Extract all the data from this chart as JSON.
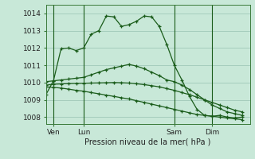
{
  "xlabel": "Pression niveau de la mer( hPa )",
  "ylim": [
    1007.6,
    1014.5
  ],
  "yticks": [
    1008,
    1009,
    1010,
    1011,
    1012,
    1013,
    1014
  ],
  "bg_color": "#c8e8d8",
  "grid_color": "#a0c8b8",
  "line_color": "#1a5c1a",
  "day_labels": [
    "Ven",
    "Lun",
    "Sam",
    "Dim"
  ],
  "day_positions": [
    1,
    5,
    17,
    22
  ],
  "vline_positions": [
    1,
    5,
    17,
    22
  ],
  "xlim": [
    0,
    27
  ],
  "series": [
    {
      "x": [
        0,
        1,
        2,
        3,
        4,
        5,
        6,
        7,
        8,
        9,
        10,
        11,
        12,
        13,
        14,
        15,
        16,
        17,
        18,
        19,
        20,
        21,
        22,
        23,
        24,
        25,
        26
      ],
      "y": [
        1009.3,
        1010.1,
        1011.95,
        1012.0,
        1011.85,
        1012.0,
        1012.8,
        1013.0,
        1013.85,
        1013.8,
        1013.25,
        1013.35,
        1013.55,
        1013.85,
        1013.8,
        1013.25,
        1012.2,
        1011.0,
        1010.15,
        1009.2,
        1008.45,
        1008.1,
        1008.05,
        1008.1,
        1008.0,
        1007.95,
        1008.0
      ]
    },
    {
      "x": [
        0,
        1,
        2,
        3,
        4,
        5,
        6,
        7,
        8,
        9,
        10,
        11,
        12,
        13,
        14,
        15,
        16,
        17,
        18,
        19,
        20,
        21,
        22,
        23,
        24,
        25,
        26
      ],
      "y": [
        1010.05,
        1010.1,
        1010.15,
        1010.2,
        1010.25,
        1010.3,
        1010.45,
        1010.6,
        1010.75,
        1010.85,
        1010.95,
        1011.05,
        1010.95,
        1010.8,
        1010.6,
        1010.4,
        1010.15,
        1010.05,
        1009.85,
        1009.6,
        1009.3,
        1009.0,
        1008.7,
        1008.5,
        1008.3,
        1008.2,
        1008.1
      ]
    },
    {
      "x": [
        0,
        1,
        2,
        3,
        4,
        5,
        6,
        7,
        8,
        9,
        10,
        11,
        12,
        13,
        14,
        15,
        16,
        17,
        18,
        19,
        20,
        21,
        22,
        23,
        24,
        25,
        26
      ],
      "y": [
        1009.85,
        1009.9,
        1009.92,
        1009.94,
        1009.95,
        1009.96,
        1009.97,
        1009.98,
        1009.99,
        1010.0,
        1009.99,
        1009.97,
        1009.93,
        1009.88,
        1009.82,
        1009.75,
        1009.65,
        1009.55,
        1009.42,
        1009.3,
        1009.15,
        1009.0,
        1008.85,
        1008.7,
        1008.55,
        1008.4,
        1008.3
      ]
    },
    {
      "x": [
        0,
        1,
        2,
        3,
        4,
        5,
        6,
        7,
        8,
        9,
        10,
        11,
        12,
        13,
        14,
        15,
        16,
        17,
        18,
        19,
        20,
        21,
        22,
        23,
        24,
        25,
        26
      ],
      "y": [
        1009.75,
        1009.72,
        1009.68,
        1009.62,
        1009.55,
        1009.5,
        1009.42,
        1009.35,
        1009.27,
        1009.2,
        1009.12,
        1009.05,
        1008.95,
        1008.85,
        1008.75,
        1008.65,
        1008.55,
        1008.45,
        1008.35,
        1008.25,
        1008.15,
        1008.1,
        1008.05,
        1008.0,
        1007.95,
        1007.9,
        1007.85
      ]
    }
  ]
}
